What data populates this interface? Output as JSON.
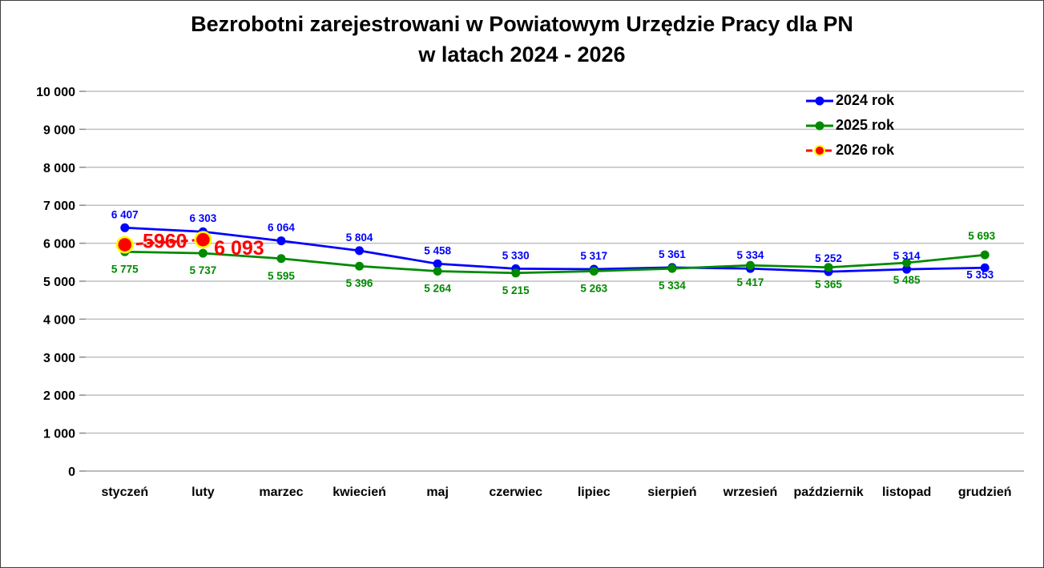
{
  "page": {
    "background": "#FFFFFF",
    "border_color": "#3F3F3F"
  },
  "chart_data": {
    "type": "line",
    "title": "Bezrobotni zarejestrowani w Powiatowym Urzędzie Pracy dla PN",
    "title_line2": "w latach 2024 - 2026",
    "categories": [
      "styczeń",
      "luty",
      "marzec",
      "kwiecień",
      "maj",
      "czerwiec",
      "lipiec",
      "sierpień",
      "wrzesień",
      "październik",
      "listopad",
      "grudzień"
    ],
    "xlabel": "",
    "ylabel": "",
    "ylim": [
      0,
      10000
    ],
    "ytick_step": 1000,
    "ytick_labels": [
      "0",
      "1 000",
      "2 000",
      "3 000",
      "4 000",
      "5 000",
      "6 000",
      "7 000",
      "8 000",
      "9 000",
      "10 000"
    ],
    "grid": true,
    "grid_color": "#BFBFBF",
    "axis_line_color": "#A6A6A6",
    "tick_color": "#8C8C8C",
    "axis_text_color": "#000000",
    "legend_position": "top-right",
    "series": [
      {
        "name": "2024 rok",
        "color": "#0000FF",
        "line_style": "solid",
        "marker": "circle",
        "values": [
          6407,
          6303,
          6064,
          5804,
          5458,
          5330,
          5317,
          5361,
          5334,
          5252,
          5314,
          5353
        ],
        "labels": [
          "6 407",
          "6 303",
          "6 064",
          "5 804",
          "5 458",
          "5 330",
          "5 317",
          "5 361",
          "5 334",
          "5 252",
          "5 314",
          "5 353"
        ],
        "label_pos": [
          "above",
          "above",
          "above",
          "above",
          "above",
          "above",
          "above",
          "above",
          "above",
          "above",
          "above",
          [
            -6,
            13
          ]
        ]
      },
      {
        "name": "2025 rok",
        "color": "#008A00",
        "line_style": "solid",
        "marker": "circle",
        "values": [
          5775,
          5737,
          5595,
          5396,
          5264,
          5215,
          5263,
          5334,
          5417,
          5365,
          5485,
          5693
        ],
        "labels": [
          "5 775",
          "5 737",
          "5 595",
          "5 396",
          "5 264",
          "5 215",
          "5 263",
          "5 334",
          "5 417",
          "5 365",
          "5 485",
          "5 693"
        ],
        "label_pos": [
          "below",
          "below",
          "below",
          "below",
          "below",
          "below",
          "below",
          "below",
          "below",
          "below",
          "below",
          [
            -4,
            -19
          ]
        ]
      },
      {
        "name": "2026 rok",
        "color": "#FF0000",
        "marker_ring": "#FFFF00",
        "line_style": "dashed",
        "marker": "circle-large",
        "values": [
          5960,
          6093,
          null,
          null,
          null,
          null,
          null,
          null,
          null,
          null,
          null,
          null
        ],
        "labels": [
          "5960",
          "6 093"
        ],
        "label_pos": [
          [
            50,
            4
          ],
          [
            45,
            19
          ]
        ],
        "label_size": "big"
      }
    ]
  }
}
